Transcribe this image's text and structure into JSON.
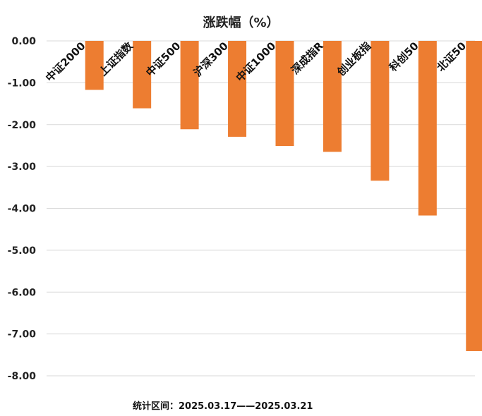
{
  "chart_data": {
    "type": "bar",
    "title": "涨跌幅（%）",
    "categories": [
      "中证2000",
      "上证指数",
      "中证500",
      "沪深300",
      "中证1000",
      "深成指R",
      "创业板指",
      "科创50",
      "北证50"
    ],
    "values": [
      -1.17,
      -1.61,
      -2.11,
      -2.29,
      -2.51,
      -2.65,
      -3.34,
      -4.17,
      -7.41
    ],
    "ylim": [
      -8,
      0
    ],
    "yticks": [
      "0.00",
      "-1.00",
      "-2.00",
      "-3.00",
      "-4.00",
      "-5.00",
      "-6.00",
      "-7.00",
      "-8.00"
    ],
    "grid": true,
    "bar_color": "#ED7D31",
    "footnote": "统计区间：2025.03.17——2025.03.21"
  }
}
